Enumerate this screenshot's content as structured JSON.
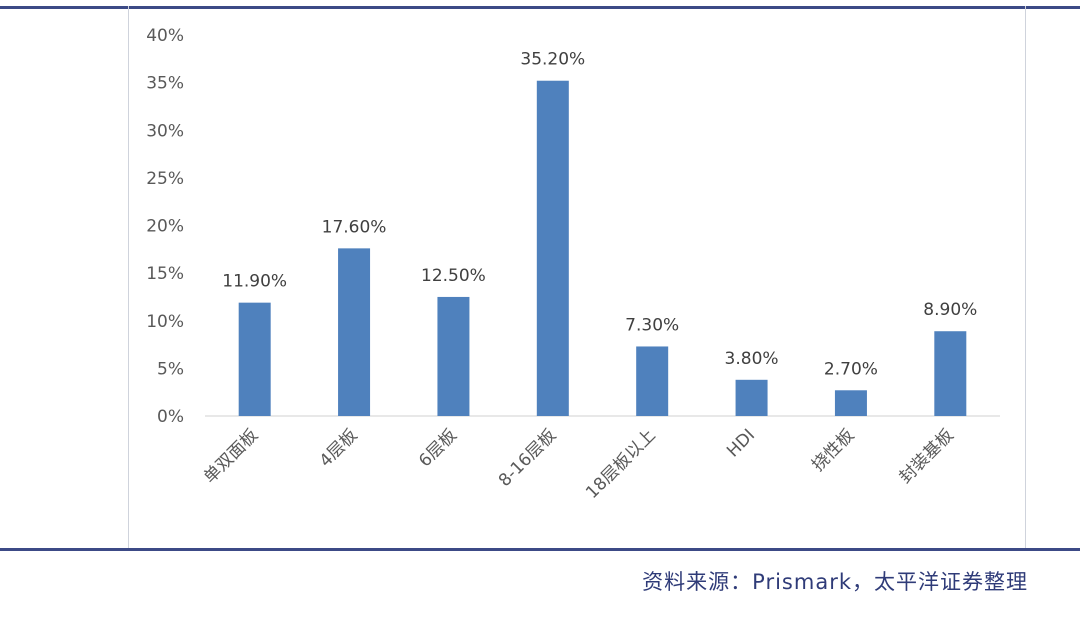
{
  "chart_data": {
    "type": "bar",
    "categories": [
      "单双面板",
      "4层板",
      "6层板",
      "8-16层板",
      "18层板以上",
      "HDI",
      "挠性板",
      "封装基板"
    ],
    "values": [
      11.9,
      17.6,
      12.5,
      35.2,
      7.3,
      3.8,
      2.7,
      8.9
    ],
    "data_labels": [
      "11.90%",
      "17.60%",
      "12.50%",
      "35.20%",
      "7.30%",
      "3.80%",
      "2.70%",
      "8.90%"
    ],
    "y_ticks": [
      "0%",
      "5%",
      "10%",
      "15%",
      "20%",
      "25%",
      "30%",
      "35%",
      "40%"
    ],
    "ylim": [
      0,
      40
    ],
    "grid": false,
    "bar_color": "#4f81bd"
  },
  "source": "资料来源：Prismark，太平洋证券整理",
  "colors": {
    "rule": "#3c4a86",
    "source_text": "#2f3b78"
  }
}
